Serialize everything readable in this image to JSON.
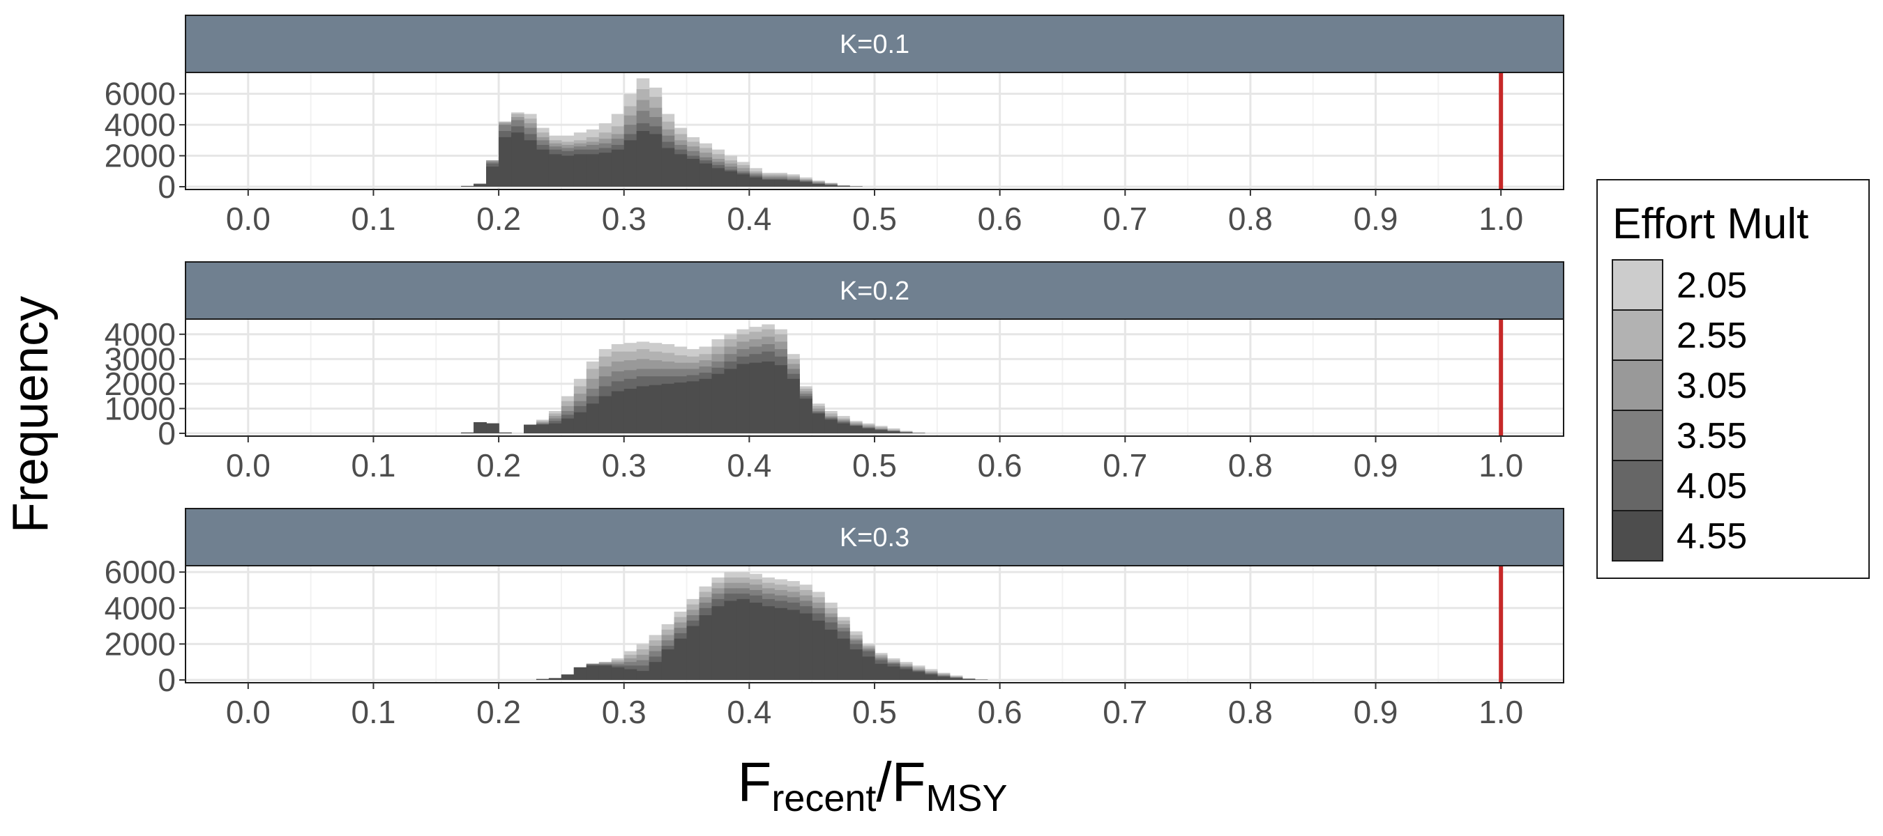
{
  "chart_data": {
    "type": "bar",
    "subtype": "stacked-histogram-facets",
    "ylabel": "Frequency",
    "xlabel": {
      "main": "F",
      "sub1": "recent",
      "divider": "/",
      "main2": "F",
      "sub2": "MSY"
    },
    "x_ticks": [
      "0.0",
      "0.1",
      "0.2",
      "0.3",
      "0.4",
      "0.5",
      "0.6",
      "0.7",
      "0.8",
      "0.9",
      "1.0"
    ],
    "xlim": [
      -0.05,
      1.05
    ],
    "reference_line": {
      "x": 1.0,
      "color": "#c62828"
    },
    "grid": true,
    "legend": {
      "title": "Effort Mult",
      "position": "right",
      "entries": [
        {
          "label": "2.05",
          "color": "#cccccc"
        },
        {
          "label": "2.55",
          "color": "#b2b2b2"
        },
        {
          "label": "3.05",
          "color": "#999999"
        },
        {
          "label": "3.55",
          "color": "#7f7f7f"
        },
        {
          "label": "4.05",
          "color": "#666666"
        },
        {
          "label": "4.55",
          "color": "#4d4d4d"
        }
      ]
    },
    "bin_width": 0.01,
    "panels": [
      {
        "strip": "K=0.1",
        "ylim": [
          0,
          7200
        ],
        "y_ticks": [
          0,
          2000,
          4000,
          6000
        ],
        "bins": [
          0.17,
          0.18,
          0.19,
          0.2,
          0.21,
          0.22,
          0.23,
          0.24,
          0.25,
          0.26,
          0.27,
          0.28,
          0.29,
          0.3,
          0.31,
          0.32,
          0.33,
          0.34,
          0.35,
          0.36,
          0.37,
          0.38,
          0.39,
          0.4,
          0.41,
          0.42,
          0.43,
          0.44,
          0.45,
          0.46,
          0.47,
          0.48
        ],
        "series": [
          {
            "name": "2.05",
            "values": [
              50,
              200,
              1700,
              4200,
              4800,
              4700,
              3800,
              3300,
              3300,
              3500,
              3700,
              4100,
              4700,
              6000,
              7000,
              6400,
              4700,
              3800,
              3200,
              2800,
              2400,
              2000,
              1600,
              1200,
              900,
              900,
              800,
              600,
              400,
              250,
              100,
              40
            ]
          },
          {
            "name": "2.55",
            "values": [
              50,
              200,
              1700,
              4200,
              4700,
              4400,
              3500,
              3000,
              2900,
              3000,
              3200,
              3500,
              3900,
              5200,
              6300,
              5800,
              4200,
              3400,
              2900,
              2500,
              2100,
              1700,
              1400,
              1000,
              800,
              800,
              700,
              500,
              350,
              220,
              90,
              35
            ]
          },
          {
            "name": "3.05",
            "values": [
              50,
              200,
              1700,
              4100,
              4500,
              4100,
              3200,
              2800,
              2700,
              2800,
              2900,
              3100,
              3400,
              4600,
              5600,
              5100,
              3700,
              3000,
              2600,
              2200,
              1800,
              1500,
              1200,
              900,
              700,
              700,
              600,
              450,
              300,
              200,
              80,
              30
            ]
          },
          {
            "name": "3.55",
            "values": [
              50,
              200,
              1600,
              4000,
              4300,
              3800,
              3000,
              2600,
              2500,
              2600,
              2700,
              2800,
              3100,
              4000,
              4900,
              4500,
              3300,
              2700,
              2300,
              1900,
              1600,
              1300,
              1000,
              800,
              600,
              600,
              500,
              400,
              250,
              150,
              60,
              20
            ]
          },
          {
            "name": "4.05",
            "values": [
              40,
              180,
              1500,
              3600,
              3900,
              3400,
              2700,
              2400,
              2300,
              2400,
              2400,
              2500,
              2700,
              3400,
              4100,
              3900,
              2900,
              2400,
              2000,
              1700,
              1400,
              1100,
              900,
              700,
              500,
              500,
              450,
              350,
              200,
              120,
              50,
              15
            ]
          },
          {
            "name": "4.55",
            "values": [
              30,
              150,
              1300,
              3200,
              3500,
              3000,
              2400,
              2100,
              2000,
              2100,
              2100,
              2200,
              2400,
              3000,
              3600,
              3400,
              2500,
              2100,
              1800,
              1500,
              1200,
              1000,
              800,
              600,
              450,
              450,
              400,
              300,
              180,
              100,
              40,
              10
            ]
          }
        ]
      },
      {
        "strip": "K=0.2",
        "ylim": [
          0,
          4500
        ],
        "y_ticks": [
          0,
          1000,
          2000,
          3000,
          4000
        ],
        "bins": [
          0.17,
          0.18,
          0.19,
          0.2,
          0.21,
          0.22,
          0.23,
          0.24,
          0.25,
          0.26,
          0.27,
          0.28,
          0.29,
          0.3,
          0.31,
          0.32,
          0.33,
          0.34,
          0.35,
          0.36,
          0.37,
          0.38,
          0.39,
          0.4,
          0.41,
          0.42,
          0.43,
          0.44,
          0.45,
          0.46,
          0.47,
          0.48,
          0.49,
          0.5,
          0.51,
          0.52,
          0.53
        ],
        "series": [
          {
            "name": "2.05",
            "values": [
              30,
              450,
              400,
              30,
              0,
              350,
              550,
              900,
              1500,
              2200,
              2900,
              3400,
              3600,
              3650,
              3700,
              3650,
              3600,
              3500,
              3400,
              3500,
              3800,
              4000,
              4200,
              4300,
              4400,
              4200,
              3200,
              1900,
              1200,
              900,
              700,
              500,
              400,
              300,
              200,
              100,
              30
            ]
          },
          {
            "name": "2.55",
            "values": [
              30,
              450,
              400,
              30,
              0,
              350,
              500,
              800,
              1300,
              1900,
              2600,
              3100,
              3300,
              3300,
              3400,
              3300,
              3250,
              3150,
              3100,
              3200,
              3500,
              3800,
              4000,
              4100,
              4200,
              4000,
              3000,
              1800,
              1100,
              800,
              600,
              450,
              350,
              250,
              150,
              80,
              25
            ]
          },
          {
            "name": "3.05",
            "values": [
              30,
              450,
              400,
              30,
              0,
              350,
              450,
              700,
              1100,
              1600,
              2200,
              2700,
              2900,
              2950,
              3000,
              2950,
              2900,
              2850,
              2850,
              2950,
              3200,
              3500,
              3700,
              3800,
              3900,
              3700,
              2800,
              1700,
              1000,
              700,
              550,
              400,
              300,
              200,
              120,
              60,
              20
            ]
          },
          {
            "name": "3.55",
            "values": [
              30,
              450,
              400,
              30,
              0,
              350,
              400,
              600,
              900,
              1300,
              1800,
              2300,
              2500,
              2550,
              2600,
              2600,
              2600,
              2600,
              2600,
              2700,
              2900,
              3200,
              3400,
              3500,
              3600,
              3400,
              2600,
              1600,
              900,
              650,
              500,
              350,
              250,
              170,
              100,
              50,
              15
            ]
          },
          {
            "name": "4.05",
            "values": [
              30,
              450,
              400,
              30,
              0,
              350,
              380,
              500,
              750,
              1100,
              1500,
              1900,
              2100,
              2200,
              2300,
              2300,
              2300,
              2300,
              2350,
              2450,
              2650,
              2900,
              3100,
              3200,
              3300,
              3100,
              2400,
              1500,
              850,
              600,
              450,
              320,
              220,
              150,
              90,
              40,
              10
            ]
          },
          {
            "name": "4.55",
            "values": [
              30,
              450,
              400,
              30,
              0,
              350,
              350,
              400,
              600,
              850,
              1200,
              1500,
              1700,
              1800,
              1900,
              1950,
              2000,
              2050,
              2100,
              2200,
              2400,
              2600,
              2800,
              2850,
              2900,
              2750,
              2200,
              1400,
              800,
              550,
              400,
              300,
              200,
              130,
              80,
              30,
              5
            ]
          }
        ]
      },
      {
        "strip": "K=0.3",
        "ylim": [
          0,
          6200
        ],
        "y_ticks": [
          0,
          2000,
          4000,
          6000
        ],
        "bins": [
          0.23,
          0.24,
          0.25,
          0.26,
          0.27,
          0.28,
          0.29,
          0.3,
          0.31,
          0.32,
          0.33,
          0.34,
          0.35,
          0.36,
          0.37,
          0.38,
          0.39,
          0.4,
          0.41,
          0.42,
          0.43,
          0.44,
          0.45,
          0.46,
          0.47,
          0.48,
          0.49,
          0.5,
          0.51,
          0.52,
          0.53,
          0.54,
          0.55,
          0.56,
          0.57,
          0.58
        ],
        "series": [
          {
            "name": "2.05",
            "values": [
              50,
              100,
              300,
              700,
              900,
              1000,
              1200,
              1600,
              2000,
              2500,
              3100,
              3800,
              4500,
              5200,
              5700,
              6000,
              6000,
              5900,
              5700,
              5600,
              5500,
              5300,
              4900,
              4300,
              3500,
              2700,
              2000,
              1500,
              1200,
              1000,
              800,
              600,
              400,
              250,
              100,
              30
            ]
          },
          {
            "name": "2.55",
            "values": [
              50,
              100,
              300,
              700,
              900,
              1000,
              1100,
              1400,
              1700,
              2200,
              2800,
              3500,
              4200,
              4900,
              5400,
              5700,
              5700,
              5600,
              5400,
              5300,
              5200,
              5000,
              4600,
              4000,
              3300,
              2500,
              1900,
              1400,
              1100,
              900,
              700,
              500,
              350,
              200,
              80,
              25
            ]
          },
          {
            "name": "3.05",
            "values": [
              50,
              100,
              300,
              700,
              900,
              950,
              1000,
              1200,
              1400,
              1900,
              2500,
              3200,
              3900,
              4600,
              5100,
              5400,
              5400,
              5300,
              5100,
              5000,
              4900,
              4700,
              4300,
              3700,
              3100,
              2300,
              1800,
              1300,
              1000,
              800,
              600,
              450,
              300,
              170,
              70,
              20
            ]
          },
          {
            "name": "3.55",
            "values": [
              50,
              100,
              300,
              700,
              900,
              900,
              900,
              1000,
              1100,
              1600,
              2200,
              2900,
              3600,
              4300,
              4800,
              5100,
              5100,
              5000,
              4800,
              4700,
              4600,
              4400,
              4000,
              3500,
              2900,
              2200,
              1700,
              1200,
              950,
              750,
              550,
              400,
              250,
              150,
              60,
              15
            ]
          },
          {
            "name": "4.05",
            "values": [
              50,
              100,
              300,
              700,
              850,
              850,
              800,
              800,
              800,
              1300,
              1900,
              2600,
              3300,
              4000,
              4500,
              4800,
              4800,
              4700,
              4500,
              4400,
              4300,
              4100,
              3700,
              3200,
              2700,
              2000,
              1600,
              1100,
              900,
              700,
              500,
              350,
              220,
              120,
              50,
              10
            ]
          },
          {
            "name": "4.55",
            "values": [
              50,
              100,
              300,
              700,
              800,
              800,
              700,
              600,
              500,
              1000,
              1700,
              2300,
              3000,
              3600,
              4100,
              4400,
              4500,
              4300,
              4100,
              4000,
              3900,
              3700,
              3300,
              2800,
              2300,
              1700,
              1300,
              900,
              750,
              600,
              450,
              300,
              180,
              100,
              40,
              10
            ]
          }
        ]
      }
    ]
  }
}
